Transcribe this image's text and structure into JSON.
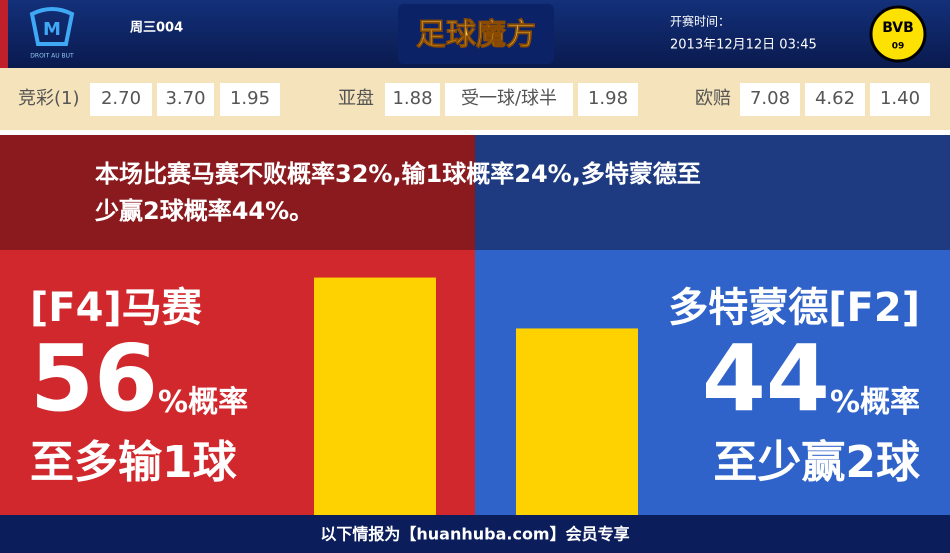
{
  "header": {
    "match_no": "周三004",
    "home_logo_caption": "DROIT AU BUT",
    "site_logo": "足球魔方",
    "time_label": "开赛时间：",
    "time": "2013年12月12日 03:45",
    "away_logo": "BVB",
    "away_logo_year": "09"
  },
  "odds": {
    "jingcai": {
      "label": "竞彩(1)",
      "values": [
        "2.70",
        "3.70",
        "1.95"
      ]
    },
    "yapan": {
      "label": "亚盘",
      "values": [
        "1.88",
        "受一球/球半",
        "1.98"
      ]
    },
    "oupei": {
      "label": "欧赔",
      "values": [
        "7.08",
        "4.62",
        "1.40"
      ]
    }
  },
  "summary": [
    "本场比赛马赛不败概率32%,输1球概率24%,多特蒙德至",
    "少赢2球概率44%。"
  ],
  "home": {
    "name": "[F4]马赛",
    "percent": 56,
    "unit": "%概率",
    "outcome": "至多输1球",
    "color": "#fed100"
  },
  "away": {
    "name": "多特蒙德[F2]",
    "percent": 44,
    "unit": "%概率",
    "outcome": "至少赢2球",
    "color": "#fed100"
  },
  "footer": "以下情报为【huanhuba.com】会员专享"
}
